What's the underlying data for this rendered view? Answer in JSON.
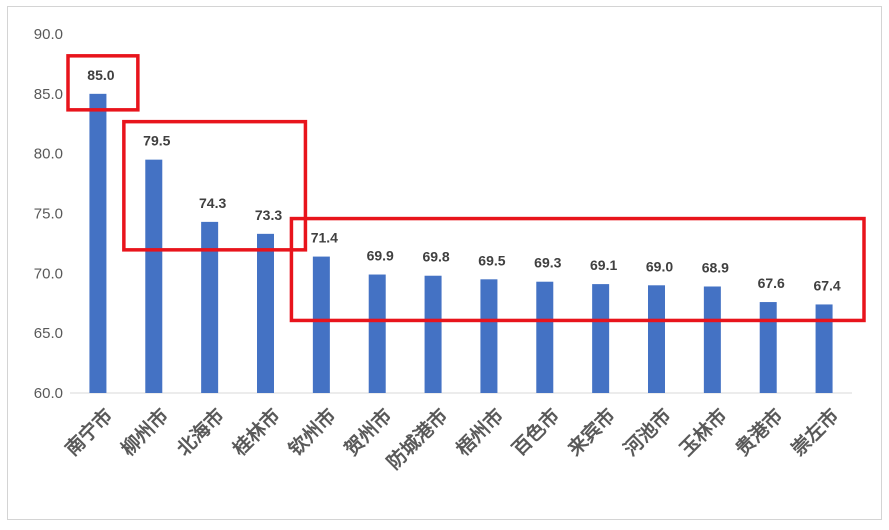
{
  "chart_data": {
    "type": "bar",
    "categories": [
      "南宁市",
      "柳州市",
      "北海市",
      "桂林市",
      "钦州市",
      "贺州市",
      "防城港市",
      "梧州市",
      "百色市",
      "来宾市",
      "河池市",
      "玉林市",
      "贵港市",
      "崇左市"
    ],
    "values": [
      85.0,
      79.5,
      74.3,
      73.3,
      71.4,
      69.9,
      69.8,
      69.5,
      69.3,
      69.1,
      69.0,
      68.9,
      67.6,
      67.4
    ],
    "data_labels": [
      "85.0",
      "79.5",
      "74.3",
      "73.3",
      "71.4",
      "69.9",
      "69.8",
      "69.5",
      "69.3",
      "69.1",
      "69.0",
      "68.9",
      "67.6",
      "67.4"
    ],
    "title": "",
    "xlabel": "",
    "ylabel": "",
    "ylim": [
      60,
      90
    ],
    "yticks": [
      "60.0",
      "65.0",
      "70.0",
      "75.0",
      "80.0",
      "85.0",
      "90.0"
    ],
    "grid": false,
    "bar_color": "#4472C4",
    "highlight_color": "#E8141C",
    "highlight_groups": [
      {
        "from": "南宁市",
        "to": "南宁市"
      },
      {
        "from": "柳州市",
        "to": "桂林市"
      },
      {
        "from": "钦州市",
        "to": "崇左市"
      }
    ]
  }
}
